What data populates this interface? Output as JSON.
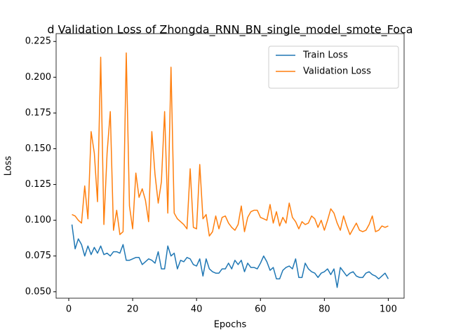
{
  "chart_data": {
    "type": "line",
    "title": "d Validation Loss of Zhongda_RNN_BN_single_model_smote_Foca",
    "x_label": "Epochs",
    "y_label": "Loss",
    "x": [
      1,
      2,
      3,
      4,
      5,
      6,
      7,
      8,
      9,
      10,
      11,
      12,
      13,
      14,
      15,
      16,
      17,
      18,
      19,
      20,
      21,
      22,
      23,
      24,
      25,
      26,
      27,
      28,
      29,
      30,
      31,
      32,
      33,
      34,
      35,
      36,
      37,
      38,
      39,
      40,
      41,
      42,
      43,
      44,
      45,
      46,
      47,
      48,
      49,
      50,
      51,
      52,
      53,
      54,
      55,
      56,
      57,
      58,
      59,
      60,
      61,
      62,
      63,
      64,
      65,
      66,
      67,
      68,
      69,
      70,
      71,
      72,
      73,
      74,
      75,
      76,
      77,
      78,
      79,
      80,
      81,
      82,
      83,
      84,
      85,
      86,
      87,
      88,
      89,
      90,
      91,
      92,
      93,
      94,
      95,
      96,
      97,
      98,
      99,
      100
    ],
    "series": [
      {
        "name": "Train Loss",
        "color": "#1f77b4",
        "values": [
          0.097,
          0.08,
          0.087,
          0.083,
          0.075,
          0.082,
          0.076,
          0.081,
          0.077,
          0.082,
          0.076,
          0.077,
          0.075,
          0.078,
          0.078,
          0.077,
          0.083,
          0.072,
          0.072,
          0.073,
          0.074,
          0.074,
          0.069,
          0.071,
          0.073,
          0.072,
          0.07,
          0.078,
          0.066,
          0.066,
          0.082,
          0.075,
          0.077,
          0.066,
          0.072,
          0.071,
          0.074,
          0.073,
          0.069,
          0.068,
          0.073,
          0.061,
          0.073,
          0.066,
          0.064,
          0.063,
          0.063,
          0.066,
          0.066,
          0.07,
          0.066,
          0.072,
          0.069,
          0.072,
          0.064,
          0.07,
          0.067,
          0.067,
          0.066,
          0.07,
          0.075,
          0.071,
          0.065,
          0.067,
          0.059,
          0.059,
          0.065,
          0.067,
          0.068,
          0.066,
          0.073,
          0.06,
          0.06,
          0.07,
          0.066,
          0.064,
          0.063,
          0.06,
          0.063,
          0.064,
          0.066,
          0.062,
          0.066,
          0.053,
          0.067,
          0.064,
          0.061,
          0.063,
          0.064,
          0.061,
          0.06,
          0.06,
          0.063,
          0.064,
          0.062,
          0.061,
          0.059,
          0.061,
          0.063,
          0.059
        ]
      },
      {
        "name": "Validation Loss",
        "color": "#ff7f0e",
        "values": [
          0.104,
          0.103,
          0.1,
          0.098,
          0.124,
          0.101,
          0.162,
          0.147,
          0.113,
          0.214,
          0.097,
          0.147,
          0.176,
          0.093,
          0.107,
          0.09,
          0.092,
          0.217,
          0.11,
          0.094,
          0.133,
          0.116,
          0.122,
          0.114,
          0.099,
          0.162,
          0.132,
          0.112,
          0.127,
          0.176,
          0.105,
          0.207,
          0.105,
          0.101,
          0.099,
          0.097,
          0.094,
          0.136,
          0.095,
          0.094,
          0.139,
          0.101,
          0.104,
          0.089,
          0.092,
          0.103,
          0.094,
          0.102,
          0.103,
          0.098,
          0.095,
          0.093,
          0.097,
          0.11,
          0.092,
          0.102,
          0.106,
          0.107,
          0.107,
          0.102,
          0.101,
          0.1,
          0.111,
          0.098,
          0.106,
          0.096,
          0.102,
          0.098,
          0.112,
          0.102,
          0.099,
          0.094,
          0.099,
          0.097,
          0.098,
          0.103,
          0.101,
          0.095,
          0.1,
          0.093,
          0.1,
          0.108,
          0.105,
          0.098,
          0.093,
          0.103,
          0.096,
          0.09,
          0.094,
          0.098,
          0.093,
          0.092,
          0.093,
          0.097,
          0.103,
          0.092,
          0.093,
          0.096,
          0.095,
          0.096
        ]
      }
    ],
    "xlim": [
      -3.95,
      104.95
    ],
    "xticks": [
      0,
      20,
      40,
      60,
      80,
      100
    ],
    "ylim": [
      0.0455,
      0.2305
    ],
    "yticks": [
      {
        "value": 0.05,
        "label": "0.050"
      },
      {
        "value": 0.075,
        "label": "0.075"
      },
      {
        "value": 0.1,
        "label": "0.100"
      },
      {
        "value": 0.125,
        "label": "0.125"
      },
      {
        "value": 0.15,
        "label": "0.150"
      },
      {
        "value": 0.175,
        "label": "0.175"
      },
      {
        "value": 0.2,
        "label": "0.200"
      },
      {
        "value": 0.225,
        "label": "0.225"
      }
    ],
    "legend": "upper right"
  }
}
